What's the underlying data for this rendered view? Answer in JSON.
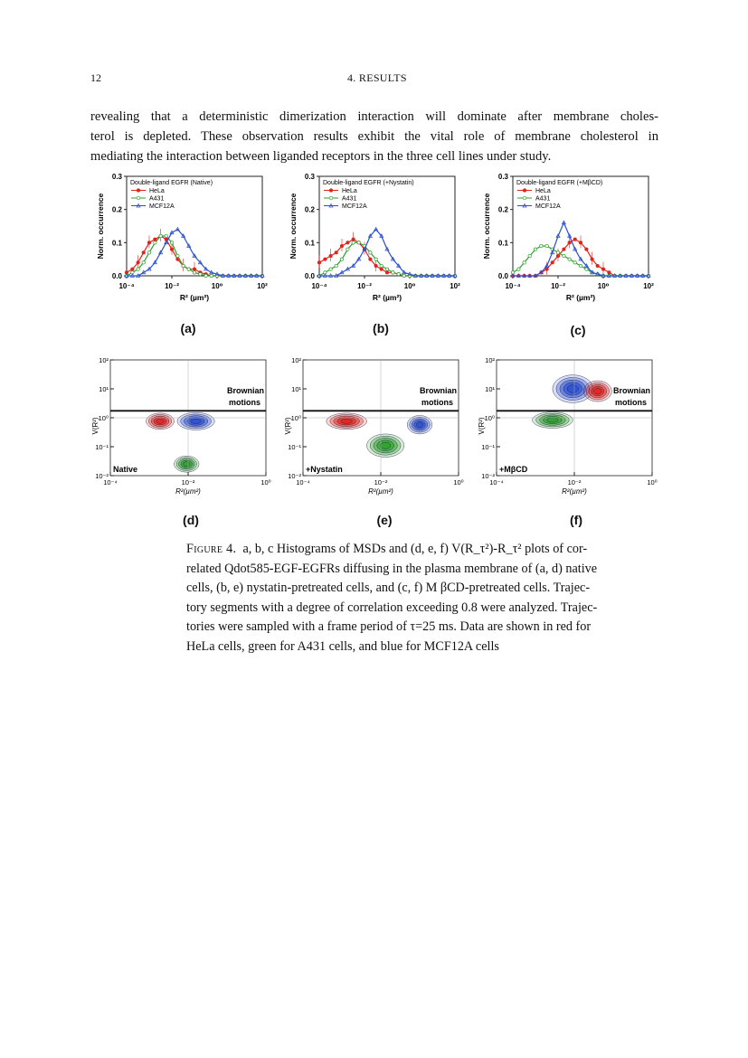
{
  "header": {
    "page_number": "12",
    "section": "4. RESULTS"
  },
  "body_text": [
    "revealing that a deterministic dimerization interaction will dominate after membrane choles-",
    "terol is depleted.  These observation results exhibit the vital role of membrane cholesterol in",
    "mediating the interaction between liganded receptors in the three cell lines under study."
  ],
  "colors": {
    "hela": "#e3221c",
    "a431": "#2ca02c",
    "mcf12a": "#2a4fd0"
  },
  "histograms": {
    "ylabel": "Norm. occurrence",
    "xlabel": "R² (µm²)",
    "yticks": [
      "0.3",
      "0.2",
      "0.1",
      "0.0"
    ],
    "xticks": [
      "10⁻⁴",
      "10⁻²",
      "10⁰",
      "10²"
    ],
    "legend_entries": [
      "HeLa",
      "A431",
      "MCF12A"
    ],
    "panels": [
      {
        "tag": "(a)",
        "legend_title": "Double-ligand EGFR (Native)"
      },
      {
        "tag": "(b)",
        "legend_title": "Double-ligand EGFR (+Nystatin)"
      },
      {
        "tag": "(c)",
        "legend_title": "Double-ligand EGFR (+MβCD)"
      }
    ]
  },
  "contours": {
    "ylabel": "V(R²)",
    "xlabel": "R²(µm²)",
    "yticks": [
      "10²",
      "10¹",
      "10⁰",
      "10⁻¹",
      "10⁻²"
    ],
    "xticks": [
      "10⁻⁴",
      "10⁻²",
      "10⁰"
    ],
    "annotation_line1": "Brownian",
    "annotation_line2": "motions",
    "panels": [
      {
        "tag": "(d)",
        "condition": "Native"
      },
      {
        "tag": "(e)",
        "condition": "+Nystatin"
      },
      {
        "tag": "(f)",
        "condition": "+MβCD"
      }
    ]
  },
  "chart_data": [
    {
      "type": "line",
      "title": "Double-ligand EGFR (Native)",
      "xlabel": "R² (µm²)",
      "ylabel": "Norm. occurrence",
      "xscale": "log",
      "xlim": [
        0.0001,
        100
      ],
      "ylim": [
        0,
        0.3
      ],
      "series": [
        {
          "name": "HeLa",
          "x": [
            0.0001,
            0.00018,
            0.00032,
            0.00056,
            0.001,
            0.0018,
            0.0032,
            0.0056,
            0.01,
            0.018,
            0.032,
            0.056,
            0.1,
            0.18,
            0.32,
            0.56,
            1,
            1.8,
            3.2,
            5.6,
            10,
            18,
            32,
            56,
            100
          ],
          "y": [
            0.01,
            0.02,
            0.04,
            0.07,
            0.1,
            0.11,
            0.12,
            0.11,
            0.08,
            0.05,
            0.03,
            0.02,
            0.02,
            0.01,
            0.005,
            0,
            0,
            0,
            0,
            0,
            0,
            0,
            0,
            0,
            0
          ]
        },
        {
          "name": "A431",
          "x": [
            0.0001,
            0.00018,
            0.00032,
            0.00056,
            0.001,
            0.0018,
            0.0032,
            0.0056,
            0.01,
            0.018,
            0.032,
            0.056,
            0.1,
            0.18,
            0.32,
            0.56,
            1,
            1.8,
            3.2,
            5.6,
            10,
            18,
            32,
            56,
            100
          ],
          "y": [
            0,
            0.01,
            0.02,
            0.04,
            0.07,
            0.1,
            0.12,
            0.12,
            0.1,
            0.06,
            0.03,
            0.02,
            0.01,
            0.005,
            0,
            0,
            0,
            0,
            0,
            0,
            0,
            0,
            0,
            0,
            0
          ]
        },
        {
          "name": "MCF12A",
          "x": [
            0.0001,
            0.00018,
            0.00032,
            0.00056,
            0.001,
            0.0018,
            0.0032,
            0.0056,
            0.01,
            0.018,
            0.032,
            0.056,
            0.1,
            0.18,
            0.32,
            0.56,
            1,
            1.8,
            3.2,
            5.6,
            10,
            18,
            32,
            56,
            100
          ],
          "y": [
            0,
            0,
            0,
            0.01,
            0.02,
            0.04,
            0.07,
            0.1,
            0.13,
            0.14,
            0.12,
            0.09,
            0.06,
            0.04,
            0.02,
            0.01,
            0.005,
            0,
            0,
            0,
            0,
            0,
            0,
            0,
            0
          ]
        }
      ]
    },
    {
      "type": "line",
      "title": "Double-ligand EGFR (+Nystatin)",
      "xlabel": "R² (µm²)",
      "ylabel": "Norm. occurrence",
      "xscale": "log",
      "xlim": [
        0.0001,
        100
      ],
      "ylim": [
        0,
        0.3
      ],
      "series": [
        {
          "name": "HeLa",
          "x": [
            0.0001,
            0.00018,
            0.00032,
            0.00056,
            0.001,
            0.0018,
            0.0032,
            0.0056,
            0.01,
            0.018,
            0.032,
            0.056,
            0.1,
            0.18,
            0.32,
            0.56,
            1,
            1.8,
            3.2,
            5.6,
            10,
            18,
            32,
            56,
            100
          ],
          "y": [
            0.04,
            0.05,
            0.06,
            0.07,
            0.09,
            0.1,
            0.11,
            0.1,
            0.08,
            0.05,
            0.03,
            0.02,
            0.01,
            0.01,
            0.005,
            0,
            0,
            0,
            0,
            0,
            0,
            0,
            0,
            0,
            0
          ]
        },
        {
          "name": "A431",
          "x": [
            0.0001,
            0.00018,
            0.00032,
            0.00056,
            0.001,
            0.0018,
            0.0032,
            0.0056,
            0.01,
            0.018,
            0.032,
            0.056,
            0.1,
            0.18,
            0.32,
            0.56,
            1,
            1.8,
            3.2,
            5.6,
            10,
            18,
            32,
            56,
            100
          ],
          "y": [
            0,
            0.01,
            0.02,
            0.03,
            0.05,
            0.08,
            0.1,
            0.1,
            0.09,
            0.07,
            0.05,
            0.03,
            0.02,
            0.01,
            0.005,
            0,
            0,
            0,
            0,
            0,
            0,
            0,
            0,
            0,
            0
          ]
        },
        {
          "name": "MCF12A",
          "x": [
            0.0001,
            0.00018,
            0.00032,
            0.00056,
            0.001,
            0.0018,
            0.0032,
            0.0056,
            0.01,
            0.018,
            0.032,
            0.056,
            0.1,
            0.18,
            0.32,
            0.56,
            1,
            1.8,
            3.2,
            5.6,
            10,
            18,
            32,
            56,
            100
          ],
          "y": [
            0,
            0,
            0,
            0,
            0.01,
            0.02,
            0.03,
            0.05,
            0.08,
            0.12,
            0.14,
            0.12,
            0.08,
            0.05,
            0.03,
            0.01,
            0.005,
            0,
            0,
            0,
            0,
            0,
            0,
            0,
            0
          ]
        }
      ]
    },
    {
      "type": "line",
      "title": "Double-ligand EGFR (+MβCD)",
      "xlabel": "R² (µm²)",
      "ylabel": "Norm. occurrence",
      "xscale": "log",
      "xlim": [
        0.0001,
        100
      ],
      "ylim": [
        0,
        0.3
      ],
      "series": [
        {
          "name": "HeLa",
          "x": [
            0.0001,
            0.00018,
            0.00032,
            0.00056,
            0.001,
            0.0018,
            0.0032,
            0.0056,
            0.01,
            0.018,
            0.032,
            0.056,
            0.1,
            0.18,
            0.32,
            0.56,
            1,
            1.8,
            3.2,
            5.6,
            10,
            18,
            32,
            56,
            100
          ],
          "y": [
            0,
            0,
            0,
            0,
            0,
            0.01,
            0.02,
            0.04,
            0.06,
            0.08,
            0.1,
            0.11,
            0.1,
            0.08,
            0.05,
            0.03,
            0.02,
            0.01,
            0,
            0,
            0,
            0,
            0,
            0,
            0
          ]
        },
        {
          "name": "A431",
          "x": [
            0.0001,
            0.00018,
            0.00032,
            0.00056,
            0.001,
            0.0018,
            0.0032,
            0.0056,
            0.01,
            0.018,
            0.032,
            0.056,
            0.1,
            0.18,
            0.32,
            0.56,
            1,
            1.8,
            3.2,
            5.6,
            10,
            18,
            32,
            56,
            100
          ],
          "y": [
            0.01,
            0.02,
            0.04,
            0.06,
            0.08,
            0.09,
            0.09,
            0.08,
            0.07,
            0.06,
            0.05,
            0.04,
            0.03,
            0.02,
            0.01,
            0.005,
            0,
            0,
            0,
            0,
            0,
            0,
            0,
            0,
            0
          ]
        },
        {
          "name": "MCF12A",
          "x": [
            0.0001,
            0.00018,
            0.00032,
            0.00056,
            0.001,
            0.0018,
            0.0032,
            0.0056,
            0.01,
            0.018,
            0.032,
            0.056,
            0.1,
            0.18,
            0.32,
            0.56,
            1,
            1.8,
            3.2,
            5.6,
            10,
            18,
            32,
            56,
            100
          ],
          "y": [
            0,
            0,
            0,
            0,
            0,
            0.01,
            0.03,
            0.07,
            0.12,
            0.16,
            0.12,
            0.08,
            0.05,
            0.03,
            0.01,
            0.005,
            0,
            0,
            0,
            0,
            0,
            0,
            0,
            0,
            0
          ]
        }
      ]
    }
  ],
  "caption": {
    "figure_label": "Figure 4.",
    "lines": [
      "a, b, c Histograms of MSDs and (d, e, f) V(R_τ²)-R_τ² plots of cor-",
      "related Qdot585-EGF-EGFRs diffusing in the plasma membrane of (a, d) native",
      "cells, (b, e) nystatin-pretreated cells, and (c, f) M βCD-pretreated cells. Trajec-",
      "tory segments with a degree of correlation exceeding 0.8 were analyzed. Trajec-",
      "tories were sampled with a frame period of τ=25 ms. Data are shown in red for",
      "HeLa cells, green for A431 cells, and blue for MCF12A cells"
    ]
  }
}
